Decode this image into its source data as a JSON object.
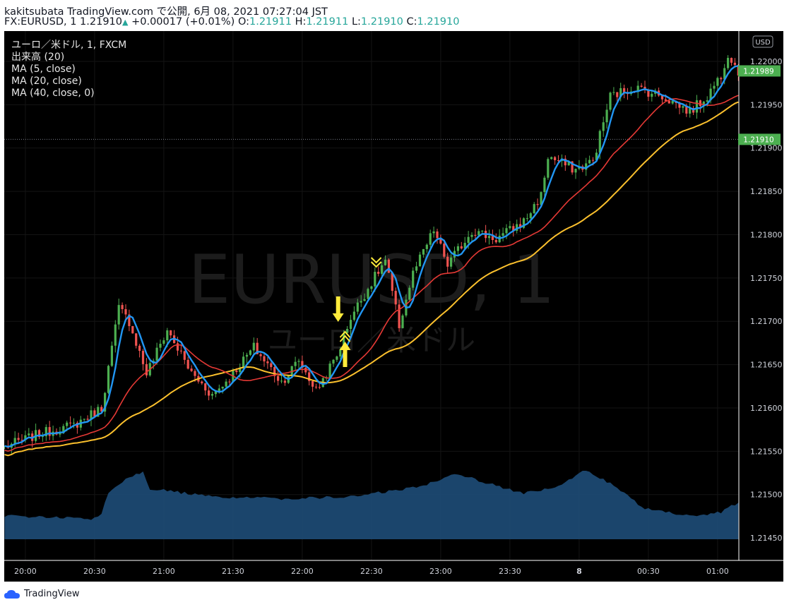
{
  "header": {
    "line1": "kakitsubata TradingView.com で公開, 6月 08, 2021 07:27:04 JST",
    "symbol": "FX:EURUSD, 1",
    "last": "1.21910",
    "change": "+0.00017 (+0.01%)",
    "o_label": "O:",
    "o": "1.21911",
    "h_label": "H:",
    "h": "1.21911",
    "l_label": "L:",
    "l": "1.21910",
    "c_label": "C:",
    "c": "1.21910"
  },
  "legend": {
    "title": "ユーロ／米ドル, 1, FXCM",
    "volume": "出来高 (20)",
    "ma5": "MA (5, close)",
    "ma20": "MA (20, close)",
    "ma40": "MA (40, close, 0)"
  },
  "watermark": {
    "symbol": "EURUSD, 1",
    "name": "ユーロ／米ドル"
  },
  "price_axis": {
    "currency": "USD",
    "last_price_label": "1.21989",
    "crosshair_label": "1.21910"
  },
  "footer": {
    "brand": "TradingView"
  },
  "colors": {
    "background": "#000000",
    "up_candle": "#4caf50",
    "down_candle": "#ef5350",
    "ma5": "#2196f3",
    "ma20": "#e53935",
    "ma40": "#fbc02d",
    "volume": "#1e4d78",
    "price_tag": "#4caf50",
    "arrow": "#ffeb3b"
  },
  "chart_data": {
    "type": "candlestick",
    "x_tick_labels": [
      "20:00",
      "20:30",
      "21:00",
      "21:30",
      "22:00",
      "22:30",
      "23:00",
      "23:30",
      "8",
      "00:30",
      "01:00"
    ],
    "y_tick_labels": [
      "1.22000",
      "1.21950",
      "1.21900",
      "1.21850",
      "1.21800",
      "1.21750",
      "1.21700",
      "1.21650",
      "1.21600",
      "1.21550",
      "1.21500",
      "1.21450"
    ],
    "ylim": [
      1.21424,
      1.22035
    ],
    "close_path": [
      {
        "t": 0,
        "v": 1.21555
      },
      {
        "t": 10,
        "v": 1.2157
      },
      {
        "t": 20,
        "v": 1.2158
      },
      {
        "t": 28,
        "v": 1.216
      },
      {
        "t": 33,
        "v": 1.21715
      },
      {
        "t": 36,
        "v": 1.217
      },
      {
        "t": 41,
        "v": 1.2164
      },
      {
        "t": 47,
        "v": 1.2169
      },
      {
        "t": 54,
        "v": 1.2164
      },
      {
        "t": 60,
        "v": 1.21615
      },
      {
        "t": 65,
        "v": 1.21635
      },
      {
        "t": 72,
        "v": 1.2167
      },
      {
        "t": 80,
        "v": 1.2163
      },
      {
        "t": 85,
        "v": 1.21655
      },
      {
        "t": 90,
        "v": 1.2162
      },
      {
        "t": 96,
        "v": 1.2166
      },
      {
        "t": 100,
        "v": 1.21705
      },
      {
        "t": 106,
        "v": 1.21745
      },
      {
        "t": 110,
        "v": 1.2177
      },
      {
        "t": 114,
        "v": 1.21695
      },
      {
        "t": 118,
        "v": 1.21755
      },
      {
        "t": 124,
        "v": 1.21805
      },
      {
        "t": 128,
        "v": 1.21765
      },
      {
        "t": 135,
        "v": 1.21805
      },
      {
        "t": 142,
        "v": 1.21795
      },
      {
        "t": 150,
        "v": 1.21815
      },
      {
        "t": 155,
        "v": 1.21845
      },
      {
        "t": 157,
        "v": 1.2189
      },
      {
        "t": 165,
        "v": 1.21875
      },
      {
        "t": 170,
        "v": 1.21885
      },
      {
        "t": 175,
        "v": 1.2196
      },
      {
        "t": 182,
        "v": 1.2197
      },
      {
        "t": 190,
        "v": 1.2196
      },
      {
        "t": 198,
        "v": 1.21942
      },
      {
        "t": 203,
        "v": 1.2196
      },
      {
        "t": 207,
        "v": 1.21985
      },
      {
        "t": 209,
        "v": 1.2201
      },
      {
        "t": 212,
        "v": 1.21989
      }
    ],
    "ma5": "5-period moving average of close",
    "ma20": "20-period moving average of close",
    "ma40": "40-period moving average of close",
    "last_price": 1.21989,
    "crosshair_price": 1.2191,
    "signals": [
      {
        "type": "down-arrow",
        "t": 98
      },
      {
        "type": "up-arrow",
        "t": 100
      },
      {
        "type": "chevron-up",
        "t": 100
      },
      {
        "type": "chevron-down",
        "t": 109
      }
    ],
    "volume_profile": [
      {
        "t": 0,
        "v": 0.28
      },
      {
        "t": 25,
        "v": 0.24
      },
      {
        "t": 28,
        "v": 0.3
      },
      {
        "t": 30,
        "v": 0.55
      },
      {
        "t": 35,
        "v": 0.72
      },
      {
        "t": 40,
        "v": 0.8
      },
      {
        "t": 42,
        "v": 0.6
      },
      {
        "t": 60,
        "v": 0.5
      },
      {
        "t": 80,
        "v": 0.48
      },
      {
        "t": 100,
        "v": 0.5
      },
      {
        "t": 120,
        "v": 0.62
      },
      {
        "t": 130,
        "v": 0.78
      },
      {
        "t": 140,
        "v": 0.66
      },
      {
        "t": 150,
        "v": 0.54
      },
      {
        "t": 160,
        "v": 0.62
      },
      {
        "t": 168,
        "v": 0.82
      },
      {
        "t": 175,
        "v": 0.66
      },
      {
        "t": 185,
        "v": 0.36
      },
      {
        "t": 200,
        "v": 0.26
      },
      {
        "t": 207,
        "v": 0.32
      },
      {
        "t": 212,
        "v": 0.44
      }
    ]
  }
}
